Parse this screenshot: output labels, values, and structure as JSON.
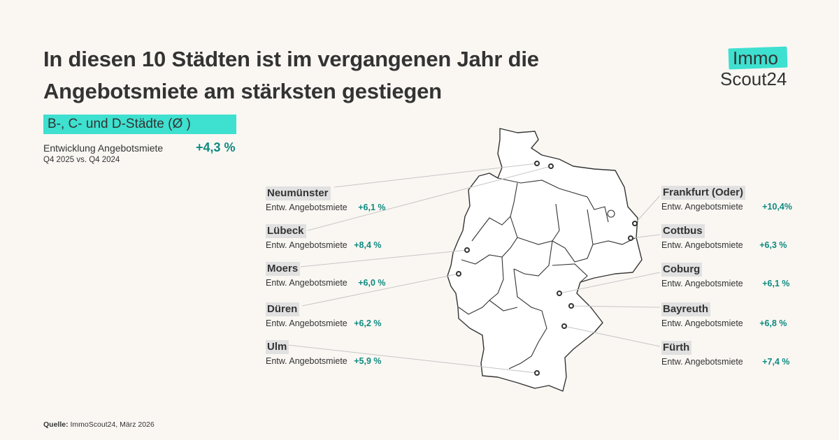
{
  "header": {
    "title_line1": "In diesen 10 Städten ist im vergangenen Jahr die",
    "title_line2": "Angebotsmiete am stärksten gestiegen"
  },
  "logo": {
    "line1": "Immo",
    "line2": "Scout24"
  },
  "summary": {
    "badge": "B-, C- und D-Städte (Ø )",
    "label": "Entwicklung Angebotsmiete",
    "value": "+4,3 %",
    "period": "Q4 2025 vs. Q4 2024"
  },
  "cities_left": [
    {
      "name": "Neumünster",
      "metric": "Entw. Angebotsmiete",
      "value": "+6,1 %"
    },
    {
      "name": "Lübeck",
      "metric": "Entw. Angebotsmiete",
      "value": "+8,4 %"
    },
    {
      "name": "Moers",
      "metric": "Entw. Angebotsmiete",
      "value": "+6,0 %"
    },
    {
      "name": "Düren",
      "metric": "Entw. Angebotsmiete",
      "value": "+6,2 %"
    },
    {
      "name": "Ulm",
      "metric": "Entw. Angebotsmiete",
      "value": "+5,9 %"
    }
  ],
  "cities_right": [
    {
      "name": "Frankfurt (Oder)",
      "metric": "Entw. Angebotsmiete",
      "value": "+10,4%"
    },
    {
      "name": "Cottbus",
      "metric": "Entw. Angebotsmiete",
      "value": "+6,3 %"
    },
    {
      "name": "Coburg",
      "metric": "Entw. Angebotsmiete",
      "value": "+6,1 %"
    },
    {
      "name": "Bayreuth",
      "metric": "Entw. Angebotsmiete",
      "value": "+6,8 %"
    },
    {
      "name": "Fürth",
      "metric": "Entw. Angebotsmiete",
      "value": "+7,4 %"
    }
  ],
  "source": {
    "label": "Quelle:",
    "text": "ImmoScout24, März 2026"
  },
  "colors": {
    "accent": "#3ee0cf",
    "positive": "#0e8a80",
    "background": "#faf7f3",
    "text": "#333333"
  }
}
